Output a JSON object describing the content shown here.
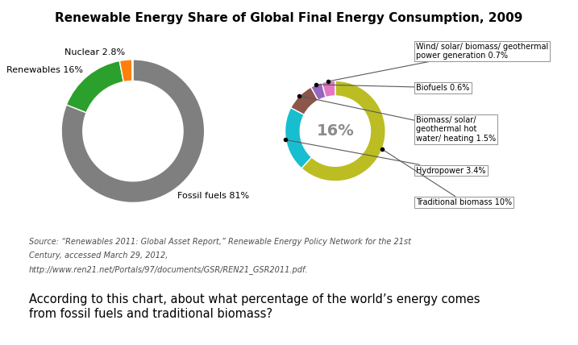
{
  "chart_data": [
    {
      "type": "donut",
      "title": "Renewable Energy Share of Global Final Energy Consumption, 2009",
      "categories": [
        "Fossil fuels 81%",
        "Renewables 16%",
        "Nuclear 2.8%",
        null
      ],
      "values": [
        81,
        16,
        2.8,
        0.2
      ],
      "colors": [
        "#7f7f7f",
        "#2ca02c",
        "#ff7f0e",
        "#d62728"
      ],
      "footnotes": [
        "Source: “Renewables 2011: Global Asset Report,” Renewable Energy Policy Network for the 21st",
        "Century, accessed March 29, 2012,",
        "http://www.ren21.net/Portals/97/documents/GSR/REN21_GSR2011.pdf."
      ],
      "question": "According to this chart, about what percentage of the world’s energy comes\nfrom fossil fuels and traditional biomass?"
    },
    {
      "type": "donut",
      "categories": [
        "Traditional biomass 10%",
        "Hydropower 3.4%",
        "Biomass/ solar/\ngeothermal hot\nwater/ heating 1.5%",
        "Biofuels 0.6%",
        "Wind/ solar/ biomass/ geothermal\npower generation 0.7%"
      ],
      "values": [
        10.0,
        3.4,
        1.5,
        0.6,
        0.7
      ],
      "colors": [
        "#bcbd22",
        "#17becf",
        "#8c564b",
        "#9467bd",
        "#e377c2"
      ],
      "center_label": "16%"
    }
  ]
}
